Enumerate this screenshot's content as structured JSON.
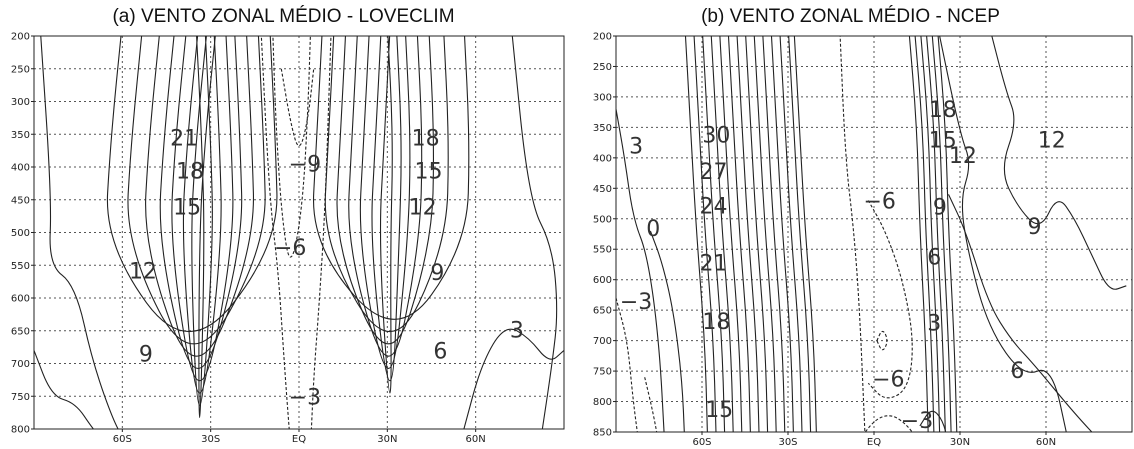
{
  "chart_data": [
    {
      "type": "contour",
      "title": "(a) VENTO ZONAL MÉDIO - LOVECLIM",
      "xlabel": "",
      "ylabel": "",
      "xlim": [
        -90,
        90
      ],
      "ylim": [
        200,
        800
      ],
      "y_axis": "pressure (reversed, 200 at top)",
      "grid": true,
      "xtick_labels": [
        "60S",
        "30S",
        "EQ",
        "30N",
        "60N"
      ],
      "xtick_values": [
        -60,
        -30,
        0,
        30,
        60
      ],
      "ytick_labels": [
        "200",
        "250",
        "300",
        "350",
        "400",
        "450",
        "500",
        "550",
        "600",
        "650",
        "700",
        "750",
        "800"
      ],
      "ytick_values": [
        200,
        250,
        300,
        350,
        400,
        450,
        500,
        550,
        600,
        650,
        700,
        750,
        800
      ],
      "contour_levels_positive": [
        3,
        6,
        9,
        12,
        15,
        18,
        21
      ],
      "contour_levels_negative": [
        -3,
        -6,
        -9
      ],
      "contour_labels": [
        {
          "text": "21",
          "x": -39,
          "y": 355
        },
        {
          "text": "18",
          "x": -37,
          "y": 405
        },
        {
          "text": "15",
          "x": -38,
          "y": 460
        },
        {
          "text": "12",
          "x": -53,
          "y": 558
        },
        {
          "text": "9",
          "x": -52,
          "y": 685
        },
        {
          "text": "−9",
          "x": 2,
          "y": 395
        },
        {
          "text": "−6",
          "x": -3,
          "y": 522
        },
        {
          "text": "−3",
          "x": 2,
          "y": 750
        },
        {
          "text": "18",
          "x": 43,
          "y": 355
        },
        {
          "text": "15",
          "x": 44,
          "y": 405
        },
        {
          "text": "12",
          "x": 42,
          "y": 460
        },
        {
          "text": "9",
          "x": 47,
          "y": 560
        },
        {
          "text": "6",
          "x": 48,
          "y": 680
        },
        {
          "text": "3",
          "x": 74,
          "y": 648
        }
      ]
    },
    {
      "type": "contour",
      "title": "(b) VENTO ZONAL MÉDIO - NCEP",
      "xlabel": "",
      "ylabel": "",
      "xlim": [
        -90,
        90
      ],
      "ylim": [
        200,
        850
      ],
      "y_axis": "pressure (reversed, 200 at top)",
      "grid": true,
      "xtick_labels": [
        "60S",
        "30S",
        "EQ",
        "30N",
        "60N"
      ],
      "xtick_values": [
        -60,
        -30,
        0,
        30,
        60
      ],
      "ytick_labels": [
        "200",
        "250",
        "300",
        "350",
        "400",
        "450",
        "500",
        "550",
        "600",
        "650",
        "700",
        "750",
        "800",
        "850"
      ],
      "ytick_values": [
        200,
        250,
        300,
        350,
        400,
        450,
        500,
        550,
        600,
        650,
        700,
        750,
        800,
        850
      ],
      "contour_levels_positive": [
        0,
        3,
        6,
        9,
        12,
        15,
        18,
        21,
        24,
        27,
        30
      ],
      "contour_levels_negative": [
        -3,
        -6
      ],
      "contour_labels": [
        {
          "text": "3",
          "x": -83,
          "y": 380
        },
        {
          "text": "30",
          "x": -55,
          "y": 362
        },
        {
          "text": "27",
          "x": -56,
          "y": 422
        },
        {
          "text": "24",
          "x": -56,
          "y": 478
        },
        {
          "text": "21",
          "x": -56,
          "y": 572
        },
        {
          "text": "18",
          "x": -55,
          "y": 668
        },
        {
          "text": "15",
          "x": -54,
          "y": 812
        },
        {
          "text": "0",
          "x": -77,
          "y": 515
        },
        {
          "text": "−3",
          "x": -83,
          "y": 635
        },
        {
          "text": "−6",
          "x": 2,
          "y": 470
        },
        {
          "text": "−6",
          "x": 5,
          "y": 762
        },
        {
          "text": "−3",
          "x": 15,
          "y": 830
        },
        {
          "text": "18",
          "x": 24,
          "y": 320
        },
        {
          "text": "15",
          "x": 24,
          "y": 370
        },
        {
          "text": "12",
          "x": 31,
          "y": 395
        },
        {
          "text": "12",
          "x": 62,
          "y": 370
        },
        {
          "text": "9",
          "x": 23,
          "y": 480
        },
        {
          "text": "9",
          "x": 56,
          "y": 512
        },
        {
          "text": "6",
          "x": 21,
          "y": 562
        },
        {
          "text": "3",
          "x": 21,
          "y": 670
        },
        {
          "text": "6",
          "x": 50,
          "y": 748
        }
      ]
    }
  ]
}
